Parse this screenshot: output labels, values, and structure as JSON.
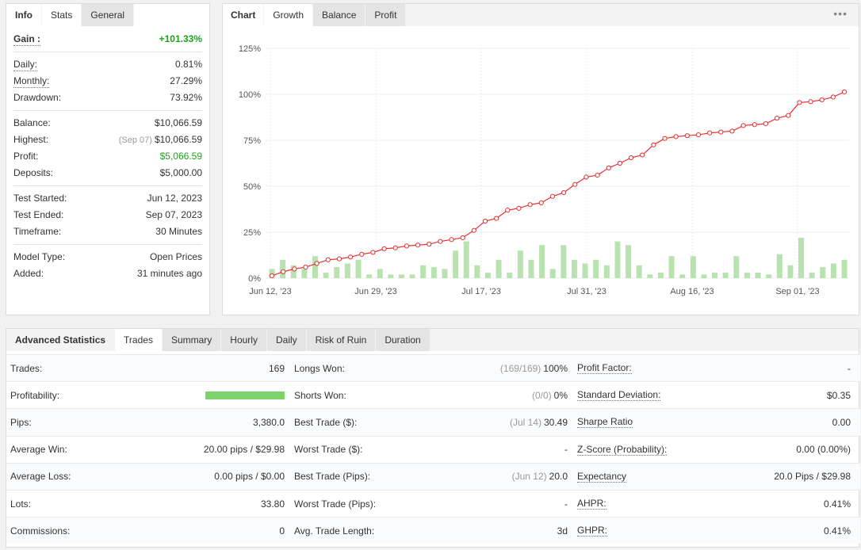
{
  "info_panel": {
    "tabs": [
      "Info",
      "Stats",
      "General"
    ],
    "gain": {
      "label": "Gain :",
      "value": "+101.33%"
    },
    "rows_a": [
      {
        "label": "Daily:",
        "value": "0.81%"
      },
      {
        "label": "Monthly:",
        "value": "27.29%"
      },
      {
        "label": "Drawdown:",
        "value": "73.92%"
      }
    ],
    "rows_b": [
      {
        "label": "Balance:",
        "value": "$10,066.59"
      },
      {
        "label": "Highest:",
        "note": "(Sep 07)",
        "value": "$10,066.59"
      },
      {
        "label": "Profit:",
        "value": "$5,066.59"
      },
      {
        "label": "Deposits:",
        "value": "$5,000.00"
      }
    ],
    "rows_c": [
      {
        "label": "Test Started:",
        "value": "Jun 12, 2023"
      },
      {
        "label": "Test Ended:",
        "value": "Sep 07, 2023"
      },
      {
        "label": "Timeframe:",
        "value": "30 Minutes"
      }
    ],
    "rows_d": [
      {
        "label": "Model Type:",
        "value": "Open Prices"
      },
      {
        "label": "Added:",
        "value": "31 minutes ago"
      }
    ],
    "colors": {
      "positive": "#1aa51a"
    }
  },
  "chart_panel": {
    "tabs": [
      "Chart",
      "Growth",
      "Balance",
      "Profit"
    ],
    "menu_icon": "more-dots-icon"
  },
  "chart_data": {
    "type": "line",
    "x_ticks": [
      "Jun 12, '23",
      "Jun 29, '23",
      "Jul 17, '23",
      "Jul 31, '23",
      "Aug 16, '23",
      "Sep 01, '23"
    ],
    "y_ticks": [
      "0%",
      "25%",
      "50%",
      "75%",
      "100%",
      "125%"
    ],
    "ylim": [
      0,
      125
    ],
    "grid": true,
    "series": [
      {
        "color": "#e8302f",
        "values": [
          1.3,
          3.5,
          5,
          6,
          8,
          10,
          10.5,
          11.5,
          13,
          14,
          16,
          16.5,
          17.5,
          18,
          18.5,
          20,
          21,
          22,
          26,
          31,
          32.5,
          37,
          38,
          40,
          41,
          44.5,
          46.5,
          51,
          55,
          56,
          60,
          62.5,
          65.5,
          67,
          72.5,
          76,
          77,
          77.5,
          78,
          79,
          79.5,
          80,
          83,
          83.5,
          84,
          87,
          88.5,
          95.5,
          96,
          97,
          98.5,
          101.3
        ]
      },
      {
        "type": "bar",
        "color": "#b8e3b0",
        "values": [
          5,
          10,
          7,
          5,
          12,
          3,
          6,
          8,
          10,
          2,
          5,
          2,
          2,
          2,
          7,
          6,
          5,
          15,
          20,
          7,
          3,
          10,
          3,
          15,
          10,
          18,
          5,
          18,
          10,
          8,
          10,
          7,
          20,
          18,
          7,
          2,
          3,
          12,
          2,
          12,
          2,
          3,
          3,
          12,
          3,
          3,
          2,
          13,
          7,
          22,
          3,
          6,
          8,
          10
        ]
      }
    ]
  },
  "advanced": {
    "tabs": [
      "Advanced Statistics",
      "Trades",
      "Summary",
      "Hourly",
      "Daily",
      "Risk of Ruin",
      "Duration"
    ],
    "profitability_fraction": 1.0,
    "rows": [
      {
        "l1": "Trades:",
        "v1": "169",
        "l2": "Longs Won:",
        "n2": "(169/169)",
        "v2": "100%",
        "l3": "Profit Factor:",
        "v3": "-"
      },
      {
        "l1": "Profitability:",
        "v1": "",
        "l2": "Shorts Won:",
        "n2": "(0/0)",
        "v2": "0%",
        "l3": "Standard Deviation:",
        "v3": "$0.35"
      },
      {
        "l1": "Pips:",
        "v1": "3,380.0",
        "l2": "Best Trade ($):",
        "n2": "(Jul 14)",
        "v2": "30.49",
        "l3": "Sharpe Ratio",
        "v3": "0.00"
      },
      {
        "l1": "Average Win:",
        "v1": "20.00 pips / $29.98",
        "l2": "Worst Trade ($):",
        "n2": "",
        "v2": "-",
        "l3": "Z-Score (Probability):",
        "v3": "0.00 (0.00%)"
      },
      {
        "l1": "Average Loss:",
        "v1": "0.00 pips / $0.00",
        "l2": "Best Trade (Pips):",
        "n2": "(Jun 12)",
        "v2": "20.0",
        "l3": "Expectancy",
        "v3": "20.0 Pips / $29.98"
      },
      {
        "l1": "Lots:",
        "v1": "33.80",
        "l2": "Worst Trade (Pips):",
        "n2": "",
        "v2": "-",
        "l3": "AHPR:",
        "v3": "0.41%"
      },
      {
        "l1": "Commissions:",
        "v1": "0",
        "l2": "Avg. Trade Length:",
        "n2": "",
        "v2": "3d",
        "l3": "GHPR:",
        "v3": "0.41%"
      }
    ]
  }
}
